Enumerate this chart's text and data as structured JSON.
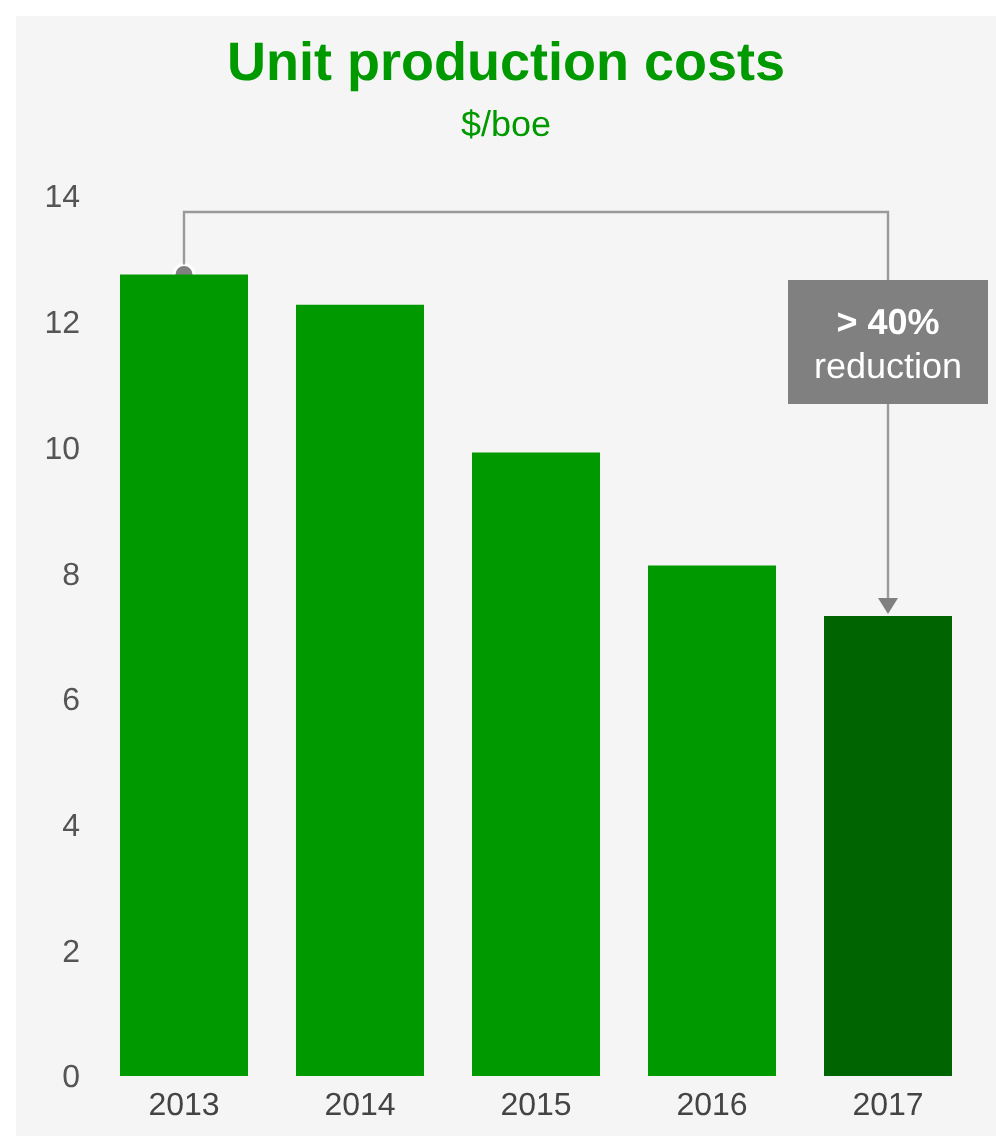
{
  "chart_data": {
    "type": "bar",
    "title": "Unit production costs",
    "subtitle": "$/boe",
    "categories": [
      "2013",
      "2014",
      "2015",
      "2016",
      "2017"
    ],
    "values": [
      12.75,
      12.27,
      9.92,
      8.12,
      7.32
    ],
    "colors": [
      "#009a00",
      "#009a00",
      "#009a00",
      "#009a00",
      "#006400"
    ],
    "ylim": [
      0,
      14
    ],
    "yticks": [
      0,
      2,
      4,
      6,
      8,
      10,
      12,
      14
    ],
    "annotations": [
      "> 40% reduction"
    ]
  }
}
